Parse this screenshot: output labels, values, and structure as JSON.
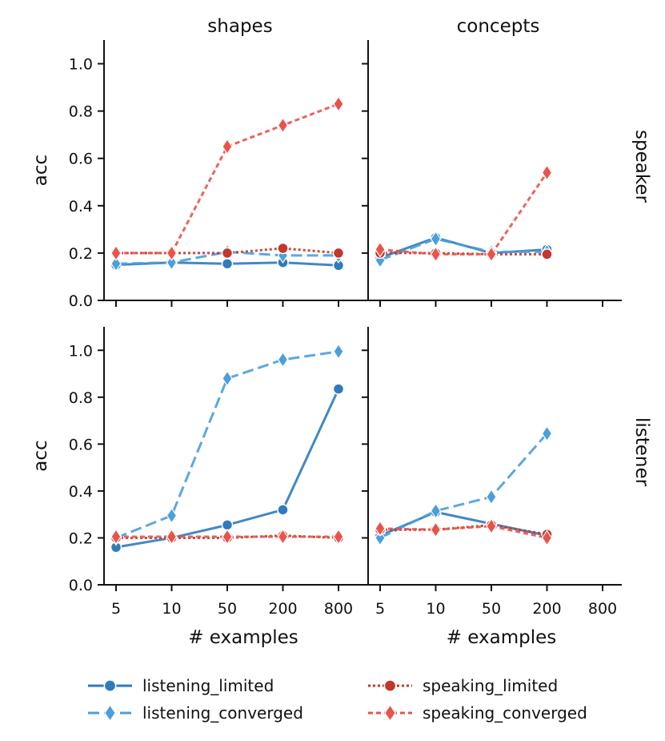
{
  "chart_data": {
    "type": "line",
    "xlabel": "# examples",
    "ylabel": "acc",
    "x_ticks": [
      "5",
      "10",
      "50",
      "200",
      "800"
    ],
    "y_ticks": [
      "0.0",
      "0.2",
      "0.4",
      "0.6",
      "0.8",
      "1.0"
    ],
    "ylim": [
      0,
      1.1
    ],
    "columns": [
      "shapes",
      "concepts"
    ],
    "rows": [
      "speaker",
      "listener"
    ],
    "colors": {
      "listening_limited": "#2f7bbd",
      "listening_converged": "#4a9fdc",
      "speaking_limited": "#c0392b",
      "speaking_converged": "#e8544a"
    },
    "legend": {
      "placement": "bottom",
      "entries": [
        "listening_limited",
        "listening_converged",
        "speaking_limited",
        "speaking_converged"
      ]
    },
    "panels": [
      {
        "row": "speaker",
        "col": "shapes",
        "series": [
          {
            "name": "listening_limited",
            "values": [
              0.15,
              0.16,
              0.155,
              0.16,
              0.148
            ]
          },
          {
            "name": "listening_converged",
            "values": [
              0.155,
              0.16,
              0.205,
              0.19,
              0.19
            ]
          },
          {
            "name": "speaking_limited",
            "values": [
              0.2,
              0.2,
              0.2,
              0.22,
              0.2
            ]
          },
          {
            "name": "speaking_converged",
            "values": [
              0.2,
              0.2,
              0.65,
              0.74,
              0.83
            ]
          }
        ]
      },
      {
        "row": "speaker",
        "col": "concepts",
        "series": [
          {
            "name": "listening_limited",
            "values": [
              0.18,
              0.265,
              0.2,
              0.215
            ]
          },
          {
            "name": "listening_converged",
            "values": [
              0.17,
              0.26,
              0.205,
              0.205
            ]
          },
          {
            "name": "speaking_limited",
            "values": [
              0.2,
              0.2,
              0.195,
              0.195
            ]
          },
          {
            "name": "speaking_converged",
            "values": [
              0.215,
              0.195,
              0.195,
              0.54
            ]
          }
        ]
      },
      {
        "row": "listener",
        "col": "shapes",
        "series": [
          {
            "name": "listening_limited",
            "values": [
              0.16,
              0.2,
              0.255,
              0.32,
              0.835
            ]
          },
          {
            "name": "listening_converged",
            "values": [
              0.2,
              0.295,
              0.88,
              0.96,
              0.995
            ]
          },
          {
            "name": "speaking_limited",
            "values": [
              0.2,
              0.2,
              0.2,
              0.21,
              0.2
            ]
          },
          {
            "name": "speaking_converged",
            "values": [
              0.205,
              0.205,
              0.205,
              0.205,
              0.205
            ]
          }
        ]
      },
      {
        "row": "listener",
        "col": "concepts",
        "series": [
          {
            "name": "listening_limited",
            "values": [
              0.21,
              0.31,
              0.26,
              0.21
            ]
          },
          {
            "name": "listening_converged",
            "values": [
              0.2,
              0.315,
              0.375,
              0.645
            ]
          },
          {
            "name": "speaking_limited",
            "values": [
              0.235,
              0.235,
              0.255,
              0.215
            ]
          },
          {
            "name": "speaking_converged",
            "values": [
              0.24,
              0.235,
              0.25,
              0.2
            ]
          }
        ]
      }
    ]
  }
}
